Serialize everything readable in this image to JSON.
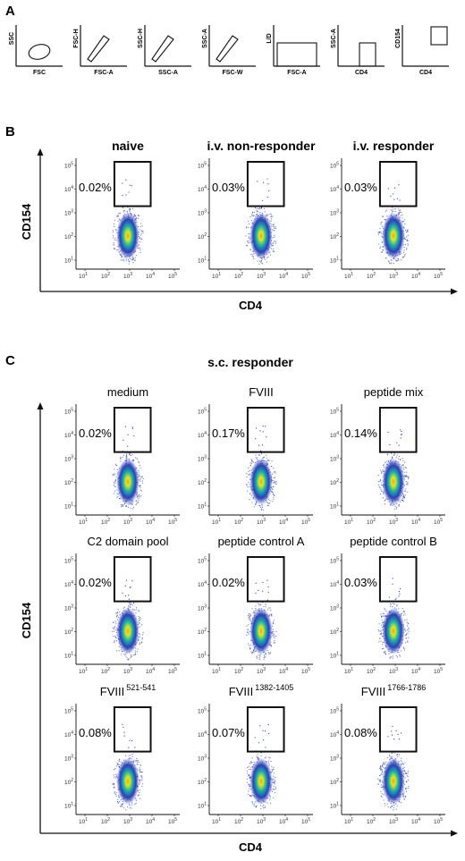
{
  "panel_labels": {
    "a": "A",
    "b": "B",
    "c": "C"
  },
  "panel_a": {
    "gating_steps": [
      {
        "y_label": "SSC",
        "x_label": "FSC",
        "gate": "ellipse"
      },
      {
        "y_label": "FSC-H",
        "x_label": "FSC-A",
        "gate": "diagonal"
      },
      {
        "y_label": "SSC-H",
        "x_label": "SSC-A",
        "gate": "diagonal"
      },
      {
        "y_label": "SSC-A",
        "x_label": "FSC-W",
        "gate": "diagonal"
      },
      {
        "y_label": "L/D",
        "x_label": "FSC-A",
        "gate": "wide-rect"
      },
      {
        "y_label": "SSC-A",
        "x_label": "CD4",
        "gate": "small-rect"
      },
      {
        "y_label": "CD154",
        "x_label": "CD4",
        "gate": "top-rect"
      }
    ]
  },
  "panel_b": {
    "y_axis_label": "CD154",
    "x_axis_label": "CD4",
    "plots": [
      {
        "title": "naive",
        "percent": "0.02%"
      },
      {
        "title": "i.v. non-responder",
        "percent": "0.03%"
      },
      {
        "title": "i.v. responder",
        "percent": "0.03%"
      }
    ]
  },
  "panel_c": {
    "title": "s.c. responder",
    "y_axis_label": "CD154",
    "x_axis_label": "CD4",
    "plots": [
      {
        "title": "medium",
        "percent": "0.02%",
        "title_sup": ""
      },
      {
        "title": "FVIII",
        "percent": "0.17%",
        "title_sup": ""
      },
      {
        "title": "peptide mix",
        "percent": "0.14%",
        "title_sup": ""
      },
      {
        "title": "C2 domain pool",
        "percent": "0.02%",
        "title_sup": ""
      },
      {
        "title": "peptide control A",
        "percent": "0.02%",
        "title_sup": ""
      },
      {
        "title": "peptide control B",
        "percent": "0.03%",
        "title_sup": ""
      },
      {
        "title": "FVIII",
        "percent": "0.08%",
        "title_sup": "521-541"
      },
      {
        "title": "FVIII",
        "percent": "0.07%",
        "title_sup": "1382-1405"
      },
      {
        "title": "FVIII",
        "percent": "0.08%",
        "title_sup": "1766-1786"
      }
    ]
  },
  "ticks": {
    "base": "10",
    "exponents": [
      "1",
      "2",
      "3",
      "4",
      "5"
    ]
  },
  "chart_data": [
    {
      "type": "scatter",
      "panel": "B",
      "title": "naive",
      "xlabel": "CD4",
      "ylabel": "CD154",
      "log_x": true,
      "log_y": true,
      "xlim": [
        10,
        100000
      ],
      "ylim": [
        10,
        100000
      ],
      "gate_percent": 0.02
    },
    {
      "type": "scatter",
      "panel": "B",
      "title": "i.v. non-responder",
      "xlabel": "CD4",
      "ylabel": "CD154",
      "log_x": true,
      "log_y": true,
      "xlim": [
        10,
        100000
      ],
      "ylim": [
        10,
        100000
      ],
      "gate_percent": 0.03
    },
    {
      "type": "scatter",
      "panel": "B",
      "title": "i.v. responder",
      "xlabel": "CD4",
      "ylabel": "CD154",
      "log_x": true,
      "log_y": true,
      "xlim": [
        10,
        100000
      ],
      "ylim": [
        10,
        100000
      ],
      "gate_percent": 0.03
    },
    {
      "type": "scatter",
      "panel": "C",
      "title": "medium",
      "xlabel": "CD4",
      "ylabel": "CD154",
      "log_x": true,
      "log_y": true,
      "xlim": [
        10,
        100000
      ],
      "ylim": [
        10,
        100000
      ],
      "gate_percent": 0.02
    },
    {
      "type": "scatter",
      "panel": "C",
      "title": "FVIII",
      "xlabel": "CD4",
      "ylabel": "CD154",
      "log_x": true,
      "log_y": true,
      "xlim": [
        10,
        100000
      ],
      "ylim": [
        10,
        100000
      ],
      "gate_percent": 0.17
    },
    {
      "type": "scatter",
      "panel": "C",
      "title": "peptide mix",
      "xlabel": "CD4",
      "ylabel": "CD154",
      "log_x": true,
      "log_y": true,
      "xlim": [
        10,
        100000
      ],
      "ylim": [
        10,
        100000
      ],
      "gate_percent": 0.14
    },
    {
      "type": "scatter",
      "panel": "C",
      "title": "C2 domain pool",
      "xlabel": "CD4",
      "ylabel": "CD154",
      "log_x": true,
      "log_y": true,
      "xlim": [
        10,
        100000
      ],
      "ylim": [
        10,
        100000
      ],
      "gate_percent": 0.02
    },
    {
      "type": "scatter",
      "panel": "C",
      "title": "peptide control A",
      "xlabel": "CD4",
      "ylabel": "CD154",
      "log_x": true,
      "log_y": true,
      "xlim": [
        10,
        100000
      ],
      "ylim": [
        10,
        100000
      ],
      "gate_percent": 0.02
    },
    {
      "type": "scatter",
      "panel": "C",
      "title": "peptide control B",
      "xlabel": "CD4",
      "ylabel": "CD154",
      "log_x": true,
      "log_y": true,
      "xlim": [
        10,
        100000
      ],
      "ylim": [
        10,
        100000
      ],
      "gate_percent": 0.03
    },
    {
      "type": "scatter",
      "panel": "C",
      "title": "FVIII 521-541",
      "xlabel": "CD4",
      "ylabel": "CD154",
      "log_x": true,
      "log_y": true,
      "xlim": [
        10,
        100000
      ],
      "ylim": [
        10,
        100000
      ],
      "gate_percent": 0.08
    },
    {
      "type": "scatter",
      "panel": "C",
      "title": "FVIII 1382-1405",
      "xlabel": "CD4",
      "ylabel": "CD154",
      "log_x": true,
      "log_y": true,
      "xlim": [
        10,
        100000
      ],
      "ylim": [
        10,
        100000
      ],
      "gate_percent": 0.07
    },
    {
      "type": "scatter",
      "panel": "C",
      "title": "FVIII 1766-1786",
      "xlabel": "CD4",
      "ylabel": "CD154",
      "log_x": true,
      "log_y": true,
      "xlim": [
        10,
        100000
      ],
      "ylim": [
        10,
        100000
      ],
      "gate_percent": 0.08
    }
  ],
  "colors": {
    "axis": "#111111",
    "density_low": "#2c3fb8",
    "density_mid": "#19b3a8",
    "density_high": "#e6e61a",
    "density_peak": "#f0a020"
  }
}
